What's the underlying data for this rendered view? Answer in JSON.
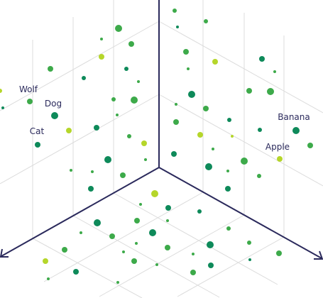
{
  "points": [
    {
      "label": "Wolf"
    },
    {
      "label": "Dog"
    },
    {
      "label": "Cat"
    },
    {
      "label": "Banana"
    },
    {
      "label": "Apple"
    }
  ]
}
